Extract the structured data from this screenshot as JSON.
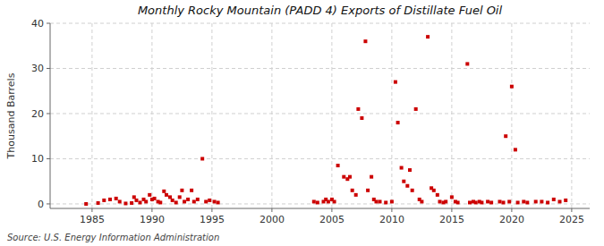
{
  "chart_data": {
    "type": "scatter",
    "title": "Monthly Rocky Mountain (PADD 4) Exports of Distillate Fuel Oil",
    "y_label": "Thousand Barrels",
    "annotations": [
      "Source: U.S. Energy Information Administration"
    ],
    "color": "#cc0000",
    "marker": "square",
    "grid": true,
    "xlim": [
      1981.5,
      2026.5
    ],
    "ylim": [
      -1,
      40
    ],
    "xticks": [
      1985,
      1990,
      1995,
      2000,
      2005,
      2010,
      2015,
      2020,
      2025
    ],
    "yticks": [
      0,
      10,
      20,
      30,
      40
    ],
    "x": [
      1984.5,
      1985.5,
      1986.0,
      1986.5,
      1987.0,
      1987.3,
      1987.8,
      1988.3,
      1988.5,
      1988.7,
      1989.0,
      1989.3,
      1989.5,
      1989.8,
      1990.0,
      1990.2,
      1990.5,
      1990.7,
      1991.0,
      1991.2,
      1991.5,
      1991.7,
      1992.0,
      1992.3,
      1992.5,
      1992.7,
      1993.0,
      1993.3,
      1993.5,
      1993.8,
      1994.2,
      1994.5,
      1994.8,
      1995.2,
      1995.5,
      2003.5,
      2003.8,
      2004.3,
      2004.5,
      2004.7,
      2005.0,
      2005.2,
      2005.5,
      2006.0,
      2006.3,
      2006.5,
      2006.7,
      2007.0,
      2007.2,
      2007.5,
      2007.8,
      2008.0,
      2008.3,
      2008.5,
      2008.7,
      2009.0,
      2009.5,
      2010.0,
      2010.3,
      2010.5,
      2010.8,
      2011.0,
      2011.3,
      2011.5,
      2011.7,
      2012.0,
      2012.3,
      2012.5,
      2013.0,
      2013.3,
      2013.5,
      2013.8,
      2014.0,
      2014.3,
      2014.5,
      2015.0,
      2015.3,
      2015.5,
      2016.3,
      2016.5,
      2016.8,
      2017.0,
      2017.3,
      2017.5,
      2018.0,
      2018.3,
      2019.0,
      2019.3,
      2019.5,
      2019.8,
      2020.0,
      2020.3,
      2020.5,
      2021.0,
      2021.3,
      2022.0,
      2022.5,
      2023.0,
      2023.5,
      2024.0,
      2024.5
    ],
    "values": [
      0.0,
      0.2,
      0.8,
      1.0,
      1.2,
      0.5,
      0.1,
      0.2,
      1.5,
      0.8,
      0.3,
      1.0,
      0.5,
      2.0,
      1.0,
      1.2,
      0.5,
      0.3,
      2.8,
      2.0,
      1.5,
      0.8,
      0.3,
      1.5,
      3.0,
      0.5,
      1.0,
      3.0,
      0.5,
      1.0,
      10.0,
      0.5,
      0.8,
      0.5,
      0.3,
      0.5,
      0.3,
      0.5,
      1.0,
      0.5,
      1.0,
      0.5,
      8.5,
      6.0,
      5.5,
      6.0,
      3.0,
      2.0,
      21.0,
      19.0,
      36.0,
      3.0,
      6.0,
      1.0,
      0.5,
      0.5,
      0.3,
      0.5,
      27.0,
      18.0,
      8.0,
      5.0,
      4.0,
      7.5,
      3.0,
      21.0,
      1.0,
      0.5,
      37.0,
      3.5,
      3.0,
      2.0,
      0.5,
      0.3,
      0.5,
      1.5,
      0.5,
      0.3,
      31.0,
      0.3,
      0.5,
      0.3,
      0.5,
      0.3,
      0.5,
      0.3,
      0.5,
      0.3,
      15.0,
      0.5,
      26.0,
      12.0,
      0.3,
      0.5,
      0.3,
      0.5,
      0.5,
      0.3,
      1.0,
      0.5,
      0.8
    ]
  }
}
